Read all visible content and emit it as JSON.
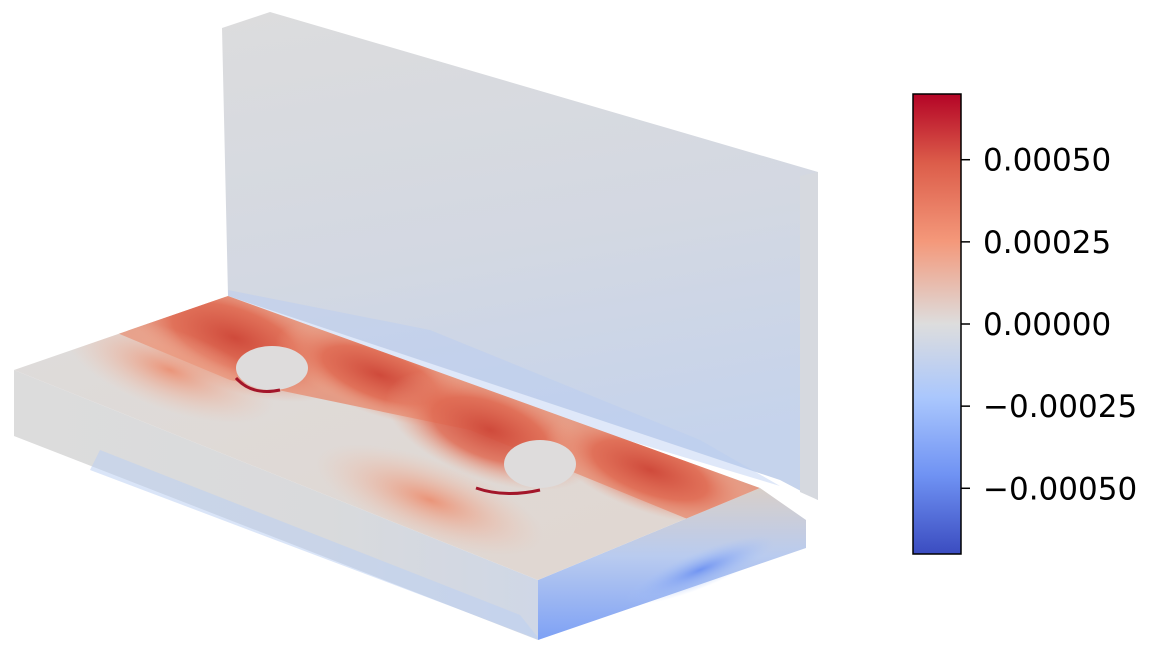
{
  "figure": {
    "description_type": "3D finite element field plot",
    "colormap": "coolwarm",
    "colors": {
      "low": "#3b4cc0",
      "mid": "#dddddd",
      "high": "#b40426",
      "background": "#ffffff"
    }
  },
  "colorbar": {
    "min": -0.0007,
    "max": 0.0007,
    "ticks": [
      {
        "value": 0.0005,
        "label": "0.00050"
      },
      {
        "value": 0.00025,
        "label": "0.00025"
      },
      {
        "value": 0.0,
        "label": "0.00000"
      },
      {
        "value": -0.00025,
        "label": "−0.00025"
      },
      {
        "value": -0.0005,
        "label": "−0.00050"
      }
    ]
  }
}
